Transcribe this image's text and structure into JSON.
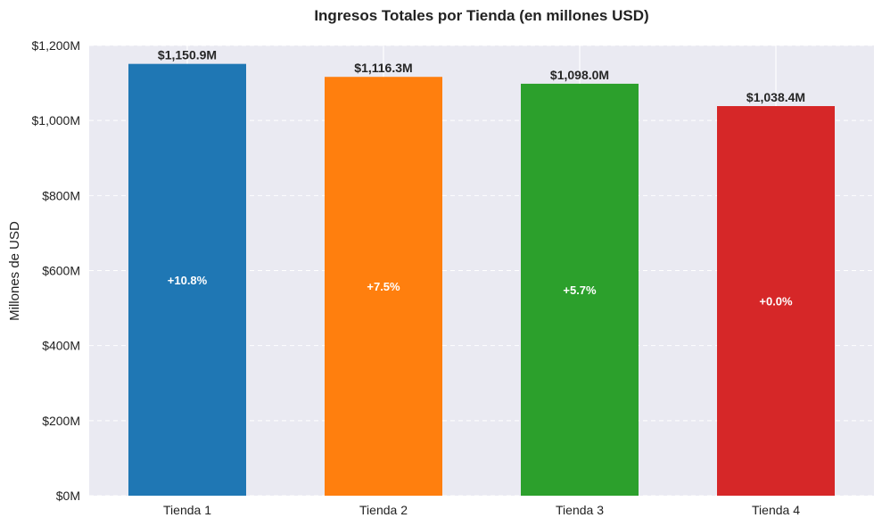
{
  "chart_data": {
    "type": "bar",
    "title": "Ingresos Totales por Tienda (en millones USD)",
    "xlabel": "",
    "ylabel": "Millones de USD",
    "categories": [
      "Tienda 1",
      "Tienda 2",
      "Tienda 3",
      "Tienda 4"
    ],
    "values": [
      1150.9,
      1116.3,
      1098.0,
      1038.4
    ],
    "value_labels": [
      "$1,150.9M",
      "$1,116.3M",
      "$1,098.0M",
      "$1,038.4M"
    ],
    "percent_labels": [
      "+10.8%",
      "+7.5%",
      "+5.7%",
      "+0.0%"
    ],
    "colors": [
      "#1f77b4",
      "#ff7f0e",
      "#2ca02c",
      "#d62728"
    ],
    "ylim": [
      0,
      1200
    ],
    "yticks": [
      0,
      200,
      400,
      600,
      800,
      1000,
      1200
    ],
    "ytick_labels": [
      "$0M",
      "$200M",
      "$400M",
      "$600M",
      "$800M",
      "$1,000M",
      "$1,200M"
    ],
    "grid": true,
    "grid_style": "dashed",
    "background": "#eaeaf2"
  }
}
